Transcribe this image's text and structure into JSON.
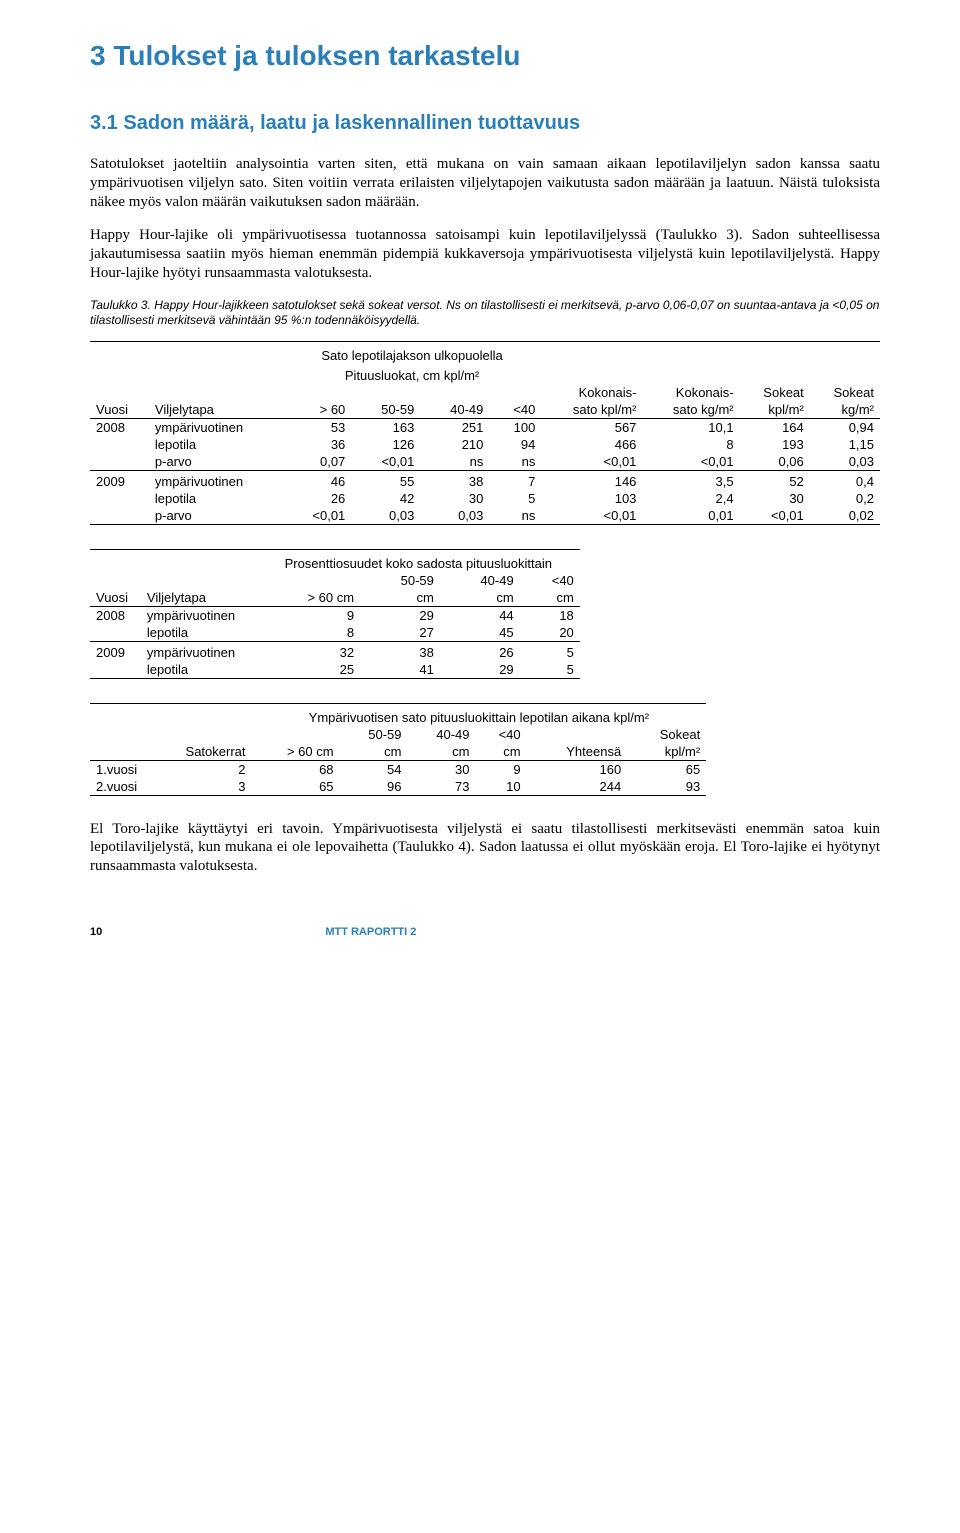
{
  "heading": "3 Tulokset ja tuloksen tarkastelu",
  "subheading": "3.1 Sadon määrä, laatu ja laskennallinen tuottavuus",
  "para1": "Satotulokset jaoteltiin analysointia varten siten, että mukana on vain samaan aikaan lepotilaviljelyn sadon kanssa saatu ympärivuotisen viljelyn sato. Siten voitiin verrata erilaisten viljelytapojen vaikutusta sadon määrään ja laatuun. Näistä tuloksista näkee myös valon määrän vaikutuksen sadon määrään.",
  "para2": "Happy Hour-lajike oli ympärivuotisessa tuotannossa satoisampi kuin lepotilaviljelyssä (Taulukko 3). Sadon suhteellisessa jakautumisessa saatiin myös hieman enemmän pidempiä kukkaversoja ympärivuotisesta viljelystä kuin lepotilaviljelystä. Happy Hour-lajike hyötyi runsaammasta valotuksesta.",
  "caption": "Taulukko 3. Happy Hour-lajikkeen satotulokset sekä sokeat versot. Ns on tilastollisesti ei merkitsevä, p-arvo 0,06-0,07 on suuntaa-antava ja <0,05 on tilastollisesti merkitsevä vähintään 95 %:n todennäköisyydellä.",
  "t1": {
    "supertitle1": "Sato lepotilajakson ulkopuolella",
    "supertitle2": "Pituusluokat, cm kpl/m²",
    "headers": [
      "Vuosi",
      "Viljelytapa",
      "> 60",
      "50-59",
      "40-49",
      "<40",
      "Kokonais-sato kpl/m²",
      "Kokonais-sato kg/m²",
      "Sokeat kpl/m²",
      "Sokeat kg/m²"
    ],
    "rows": [
      [
        "2008",
        "ympärivuotinen",
        "53",
        "163",
        "251",
        "100",
        "567",
        "10,1",
        "164",
        "0,94"
      ],
      [
        "",
        "lepotila",
        "36",
        "126",
        "210",
        "94",
        "466",
        "8",
        "193",
        "1,15"
      ],
      [
        "",
        "p-arvo",
        "0,07",
        "<0,01",
        "ns",
        "ns",
        "<0,01",
        "<0,01",
        "0,06",
        "0,03"
      ],
      [
        "",
        "",
        "",
        "",
        "",
        "",
        "",
        "",
        "",
        ""
      ],
      [
        "2009",
        "ympärivuotinen",
        "46",
        "55",
        "38",
        "7",
        "146",
        "3,5",
        "52",
        "0,4"
      ],
      [
        "",
        "lepotila",
        "26",
        "42",
        "30",
        "5",
        "103",
        "2,4",
        "30",
        "0,2"
      ],
      [
        "",
        "p-arvo",
        "<0,01",
        "0,03",
        "0,03",
        "ns",
        "<0,01",
        "0,01",
        "<0,01",
        "0,02"
      ]
    ]
  },
  "t2": {
    "supertitle": "Prosenttiosuudet koko sadosta pituusluokittain",
    "headers": [
      "Vuosi",
      "Viljelytapa",
      "> 60 cm",
      "50-59 cm",
      "40-49 cm",
      "<40 cm"
    ],
    "rows": [
      [
        "2008",
        "ympärivuotinen",
        "9",
        "29",
        "44",
        "18"
      ],
      [
        "",
        "lepotila",
        "8",
        "27",
        "45",
        "20"
      ],
      [
        "",
        "",
        "",
        "",
        "",
        ""
      ],
      [
        "2009",
        "ympärivuotinen",
        "32",
        "38",
        "26",
        "5"
      ],
      [
        "",
        "lepotila",
        "25",
        "41",
        "29",
        "5"
      ]
    ]
  },
  "t3": {
    "supertitle": "Ympärivuotisen sato pituusluokittain lepotilan aikana kpl/m²",
    "headers": [
      "",
      "Satokerrat",
      "> 60 cm",
      "50-59 cm",
      "40-49 cm",
      "<40 cm",
      "Yhteensä",
      "Sokeat kpl/m²"
    ],
    "rows": [
      [
        "1.vuosi",
        "2",
        "68",
        "54",
        "30",
        "9",
        "160",
        "65"
      ],
      [
        "2.vuosi",
        "3",
        "65",
        "96",
        "73",
        "10",
        "244",
        "93"
      ]
    ]
  },
  "para3": "El Toro-lajike käyttäytyi eri tavoin. Ympärivuotisesta viljelystä ei saatu tilastollisesti merkitsevästi enemmän satoa kuin lepotilaviljelystä, kun mukana ei ole lepovaihetta (Taulukko 4). Sadon laatussa ei ollut myöskään eroja. El Toro-lajike ei hyötynyt runsaammasta valotuksesta.",
  "footer_page": "10",
  "footer_text": "MTT RAPORTTI 2"
}
